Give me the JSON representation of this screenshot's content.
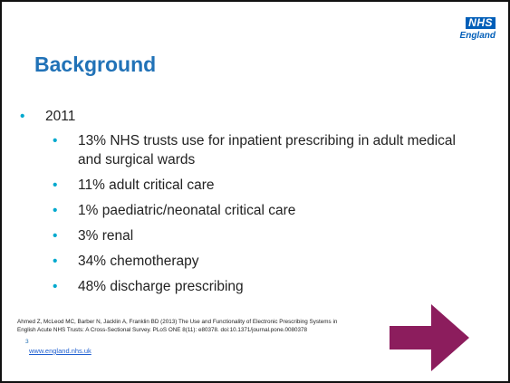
{
  "logo": {
    "mark": "NHS",
    "region": "England"
  },
  "title": "Background",
  "bullets": [
    {
      "text": "2011",
      "children": [
        "13% NHS trusts use for inpatient prescribing in adult medical and surgical wards",
        "11% adult critical care",
        "1% paediatric/neonatal critical care",
        "3% renal",
        "34% chemotherapy",
        "48% discharge prescribing"
      ]
    }
  ],
  "citation": [
    "Ahmed Z, McLeod MC, Barber N, Jacklin A, Franklin BD (2013) The Use and Functionality of Electronic Prescribing Systems in",
    "English Acute NHS Trusts: A Cross-Sectional Survey. PLoS ONE 8(11): e80378. doi:10.1371/journal.pone.0080378"
  ],
  "page_number": 3,
  "url": "www.england.nhs.uk"
}
